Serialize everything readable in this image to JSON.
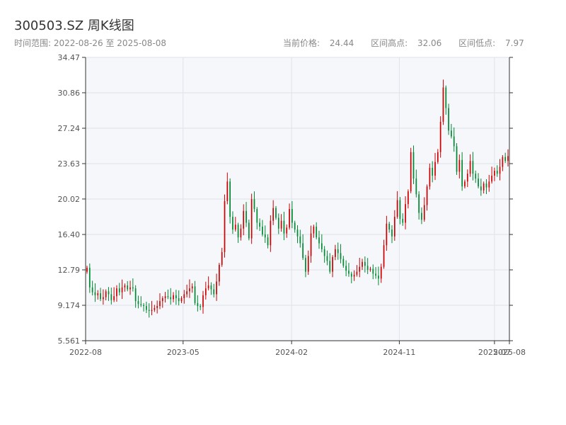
{
  "header": {
    "title": "300503.SZ 周K线图",
    "range_label": "时间范围:",
    "range_start": "2022-08-26",
    "range_sep": "至",
    "range_end": "2025-08-08",
    "current_price_label": "当前价格:",
    "current_price": "24.44",
    "high_label": "区间高点:",
    "high": "32.06",
    "low_label": "区间低点:",
    "low": "7.97"
  },
  "colors": {
    "up": "#cc0000",
    "down": "#008833",
    "plot_bg": "#f5f7fa",
    "grid": "#dde3ea",
    "axis": "#333333"
  },
  "chart_data": {
    "type": "candlestick",
    "title": "300503.SZ 周K线图",
    "xlabel": "",
    "ylabel": "",
    "ylim": [
      5.561,
      34.47
    ],
    "y_ticks": [
      "34.47",
      "30.86",
      "27.24",
      "23.63",
      "20.02",
      "16.40",
      "12.79",
      "9.174",
      "5.561"
    ],
    "x_ticks": [
      {
        "date": "2022-08-26",
        "label": "2022-08"
      },
      {
        "date": "2023-05-01",
        "label": "2023-05"
      },
      {
        "date": "2024-02-01",
        "label": "2024-02"
      },
      {
        "date": "2024-11-01",
        "label": "2024-11"
      },
      {
        "date": "2025-07-01",
        "label": "2025-07"
      },
      {
        "date": "2025-08-08",
        "label": "2025-08"
      }
    ],
    "grid": true,
    "x_start": "2022-08-26",
    "x_end": "2025-08-08",
    "weekly_close": [
      13.0,
      11.0,
      10.5,
      10.2,
      10.4,
      9.8,
      10.0,
      10.6,
      10.3,
      9.7,
      10.1,
      10.9,
      10.5,
      11.0,
      11.2,
      10.8,
      11.0,
      10.9,
      9.6,
      9.3,
      9.2,
      9.1,
      8.7,
      8.6,
      8.7,
      8.9,
      9.1,
      9.6,
      9.9,
      10.1,
      10.0,
      9.8,
      10.2,
      9.9,
      9.6,
      9.9,
      10.3,
      10.6,
      10.9,
      11.1,
      9.4,
      9.1,
      9.0,
      10.2,
      10.9,
      11.2,
      10.8,
      10.3,
      11.6,
      13.3,
      14.6,
      19.8,
      21.8,
      18.2,
      16.9,
      17.4,
      16.1,
      17.0,
      18.8,
      17.6,
      16.0,
      20.0,
      19.0,
      17.6,
      17.2,
      16.4,
      16.1,
      15.3,
      17.8,
      19.1,
      18.1,
      17.0,
      17.8,
      16.5,
      17.1,
      19.0,
      17.6,
      16.9,
      16.2,
      15.5,
      14.0,
      12.6,
      14.2,
      16.5,
      17.2,
      16.1,
      15.5,
      14.9,
      14.2,
      13.7,
      12.6,
      14.1,
      14.9,
      14.5,
      13.9,
      13.2,
      12.7,
      12.4,
      12.1,
      12.3,
      12.6,
      13.1,
      13.6,
      13.2,
      12.8,
      12.9,
      12.4,
      12.2,
      11.9,
      13.1,
      15.3,
      17.5,
      16.9,
      16.2,
      18.2,
      19.9,
      18.0,
      17.6,
      19.5,
      20.8,
      24.8,
      22.1,
      20.5,
      18.6,
      17.9,
      19.4,
      21.3,
      23.2,
      22.4,
      23.8,
      24.8,
      27.9,
      31.4,
      29.3,
      27.0,
      26.4,
      25.4,
      22.8,
      24.0,
      21.3,
      21.8,
      22.6,
      23.9,
      22.6,
      22.1,
      21.3,
      20.9,
      21.6,
      21.2,
      21.8,
      22.4,
      22.9,
      22.6,
      23.3,
      24.3,
      23.9,
      24.4
    ]
  }
}
